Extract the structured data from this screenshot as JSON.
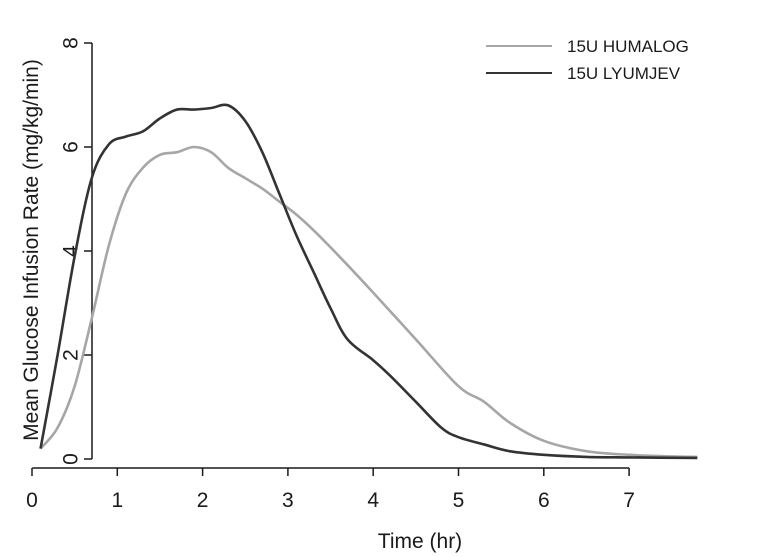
{
  "chart_data": {
    "type": "line",
    "title": "",
    "xlabel": "Time (hr)",
    "ylabel": "Mean Glucose Infusion Rate (mg/kg/min)",
    "xlim": [
      0,
      7.8
    ],
    "ylim": [
      0,
      8
    ],
    "xticks": [
      0,
      1,
      2,
      3,
      4,
      5,
      6,
      7
    ],
    "yticks": [
      0,
      2,
      4,
      6,
      8
    ],
    "grid": false,
    "legend_position": "top-right",
    "series": [
      {
        "name": "15U HUMALOG",
        "color": "#a6a6a6",
        "x": [
          0.1,
          0.3,
          0.5,
          0.7,
          0.9,
          1.1,
          1.3,
          1.5,
          1.7,
          1.9,
          2.1,
          2.3,
          2.5,
          2.7,
          2.9,
          3.1,
          3.3,
          3.6,
          4.0,
          4.5,
          5.0,
          5.3,
          5.6,
          6.0,
          6.5,
          7.0,
          7.5,
          7.8
        ],
        "y": [
          0.2,
          0.6,
          1.4,
          2.7,
          4.1,
          5.1,
          5.6,
          5.85,
          5.9,
          6.0,
          5.9,
          5.6,
          5.4,
          5.2,
          4.95,
          4.7,
          4.4,
          3.9,
          3.2,
          2.3,
          1.4,
          1.1,
          0.7,
          0.35,
          0.15,
          0.08,
          0.05,
          0.04
        ]
      },
      {
        "name": "15U LYUMJEV",
        "color": "#333333",
        "x": [
          0.1,
          0.3,
          0.5,
          0.7,
          0.9,
          1.1,
          1.3,
          1.5,
          1.7,
          1.9,
          2.1,
          2.3,
          2.5,
          2.7,
          2.9,
          3.1,
          3.3,
          3.5,
          3.7,
          4.0,
          4.2,
          4.5,
          4.8,
          5.0,
          5.3,
          5.6,
          6.0,
          6.5,
          7.0,
          7.8
        ],
        "y": [
          0.2,
          2.0,
          3.9,
          5.4,
          6.05,
          6.2,
          6.3,
          6.55,
          6.72,
          6.72,
          6.75,
          6.8,
          6.5,
          5.9,
          5.1,
          4.3,
          3.6,
          2.9,
          2.3,
          1.9,
          1.6,
          1.1,
          0.6,
          0.42,
          0.28,
          0.15,
          0.08,
          0.04,
          0.03,
          0.02
        ]
      }
    ]
  }
}
